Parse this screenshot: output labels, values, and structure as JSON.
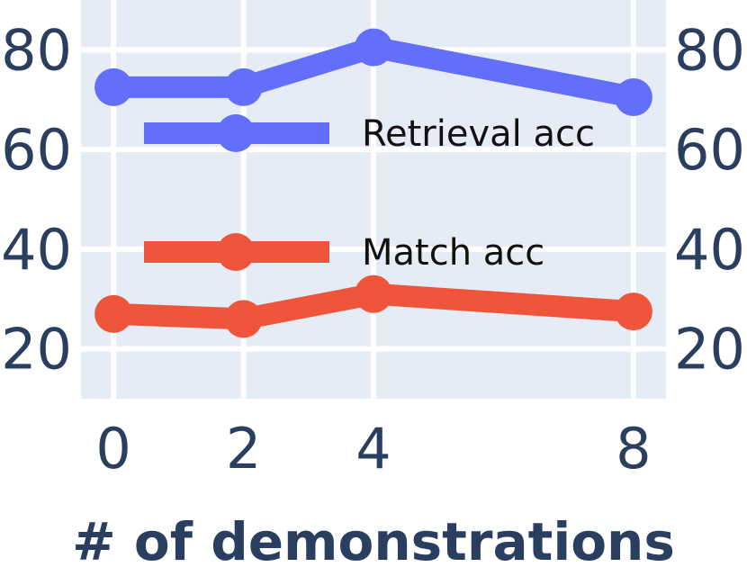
{
  "chart_data": {
    "type": "line",
    "title": "",
    "xlabel": "# of demonstrations",
    "ylabel": "",
    "x": [
      0,
      2,
      4,
      8
    ],
    "xticks": [
      "0",
      "2",
      "4",
      "8"
    ],
    "xlim": [
      -0.5,
      8.5
    ],
    "ylim": [
      10,
      90
    ],
    "yticks": [
      "20",
      "40",
      "60",
      "80"
    ],
    "yticks_right": [
      "20",
      "40",
      "60",
      "80"
    ],
    "grid": true,
    "legend_position": "center-left inside plot",
    "series": [
      {
        "name": "Retrieval acc",
        "color": "#636efa",
        "values": [
          72.5,
          72.5,
          80.5,
          70.5
        ]
      },
      {
        "name": "Match acc",
        "color": "#ef553b",
        "values": [
          27,
          26,
          31,
          27.5
        ]
      }
    ],
    "colors": {
      "plot_bg": "#e5ecf6",
      "grid": "#ffffff",
      "axis_text": "#2a3f5f"
    }
  }
}
